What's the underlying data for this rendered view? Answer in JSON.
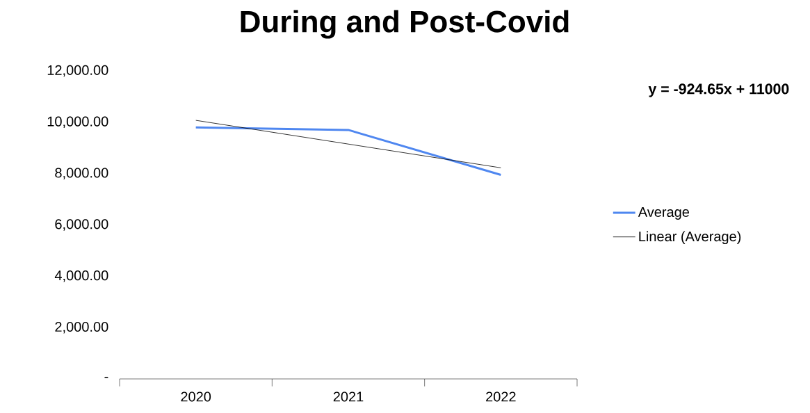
{
  "chart_data": {
    "type": "line",
    "title": "During and Post-Covid",
    "categories": [
      "2020",
      "2021",
      "2022"
    ],
    "series": [
      {
        "name": "Average",
        "color": "#4f87f0",
        "values": [
          9800,
          9700,
          7950
        ]
      },
      {
        "name": "Linear (Average)",
        "color": "#000000",
        "values": [
          10075,
          9150,
          8226
        ]
      }
    ],
    "ylim": [
      0,
      12000
    ],
    "yticks": [
      {
        "value": 0,
        "label": "-"
      },
      {
        "value": 2000,
        "label": "2,000.00"
      },
      {
        "value": 4000,
        "label": "4,000.00"
      },
      {
        "value": 6000,
        "label": "6,000.00"
      },
      {
        "value": 8000,
        "label": "8,000.00"
      },
      {
        "value": 10000,
        "label": "10,000.00"
      },
      {
        "value": 12000,
        "label": "12,000.00"
      }
    ],
    "annotations": [
      "y = -924.65x + 11000"
    ],
    "grid": false,
    "legend": "right",
    "marker": "none"
  }
}
